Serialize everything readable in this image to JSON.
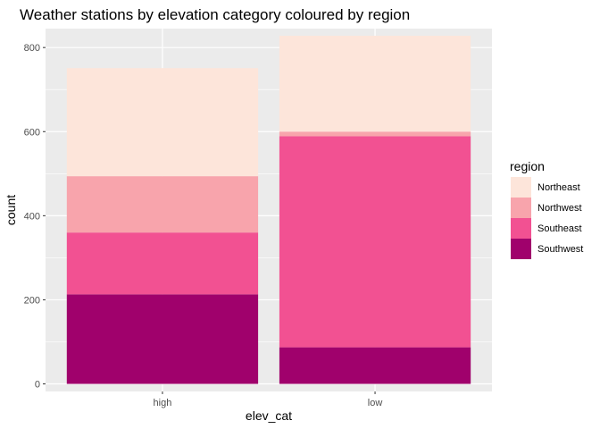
{
  "chart_data": {
    "type": "bar",
    "stacked": true,
    "title": "Weather stations by elevation category coloured by region",
    "xlabel": "elev_cat",
    "ylabel": "count",
    "categories": [
      "high",
      "low"
    ],
    "series": [
      {
        "name": "Northeast",
        "color": "#FDE5DA",
        "values": [
          257,
          228
        ]
      },
      {
        "name": "Northwest",
        "color": "#F8A4AC",
        "values": [
          134,
          11
        ]
      },
      {
        "name": "Southeast",
        "color": "#F25192",
        "values": [
          147,
          502
        ]
      },
      {
        "name": "Southwest",
        "color": "#A0016C",
        "values": [
          213,
          87
        ]
      }
    ],
    "ylim": [
      -18,
      845
    ],
    "yticks": [
      0,
      200,
      400,
      600,
      800
    ],
    "grid": true,
    "legend": {
      "title": "region",
      "position": "right"
    }
  }
}
